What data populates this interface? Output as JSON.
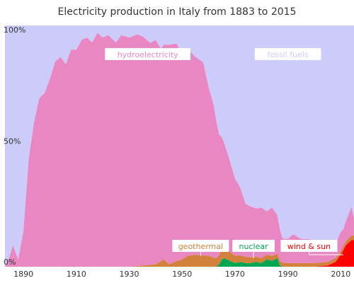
{
  "chart_data": {
    "type": "area",
    "stacked": true,
    "percent_stacked": true,
    "title": "Electricity production in Italy from 1883 to 2015",
    "xlim": [
      1883,
      2015
    ],
    "ylim": [
      0,
      100
    ],
    "x_ticks": [
      "1890",
      "1910",
      "1930",
      "1950",
      "1970",
      "1990",
      "2010"
    ],
    "y_ticks": [
      {
        "value": 0,
        "label": "0%"
      },
      {
        "value": 50,
        "label": "50%"
      },
      {
        "value": 100,
        "label": "100%"
      }
    ],
    "series": [
      {
        "name": "wind & sun",
        "color": "#ff0000",
        "points": [
          [
            1883,
            0
          ],
          [
            2000,
            0
          ],
          [
            2005,
            0.5
          ],
          [
            2008,
            2
          ],
          [
            2010,
            5
          ],
          [
            2012,
            9
          ],
          [
            2013,
            10
          ],
          [
            2014,
            11
          ],
          [
            2015,
            11
          ]
        ]
      },
      {
        "name": "nuclear",
        "color": "#00a651",
        "points": [
          [
            1883,
            0
          ],
          [
            1963,
            0
          ],
          [
            1964,
            1
          ],
          [
            1965,
            3
          ],
          [
            1966,
            3.5
          ],
          [
            1968,
            2.5
          ],
          [
            1970,
            1.5
          ],
          [
            1972,
            2
          ],
          [
            1974,
            1.5
          ],
          [
            1976,
            1.5
          ],
          [
            1978,
            2
          ],
          [
            1980,
            1.5
          ],
          [
            1982,
            3
          ],
          [
            1984,
            2.5
          ],
          [
            1986,
            3.5
          ],
          [
            1987,
            0.5
          ],
          [
            1988,
            0
          ],
          [
            2015,
            0
          ]
        ]
      },
      {
        "name": "geothermal",
        "color": "#d2823c",
        "points": [
          [
            1883,
            0
          ],
          [
            1930,
            0
          ],
          [
            1935,
            0.5
          ],
          [
            1940,
            1
          ],
          [
            1943,
            3
          ],
          [
            1945,
            1
          ],
          [
            1948,
            2.5
          ],
          [
            1950,
            3
          ],
          [
            1952,
            4.5
          ],
          [
            1955,
            5
          ],
          [
            1960,
            4.5
          ],
          [
            1963,
            3.5
          ],
          [
            1966,
            4.5
          ],
          [
            1970,
            3
          ],
          [
            1975,
            2.5
          ],
          [
            1980,
            2
          ],
          [
            1985,
            2
          ],
          [
            1990,
            1.5
          ],
          [
            1995,
            1.5
          ],
          [
            2000,
            1.5
          ],
          [
            2005,
            1.5
          ],
          [
            2010,
            1.5
          ],
          [
            2015,
            2
          ]
        ]
      },
      {
        "name": "hydroelectricity",
        "color": "#e887c1",
        "points": [
          [
            1883,
            0
          ],
          [
            1885,
            5
          ],
          [
            1886,
            9
          ],
          [
            1888,
            3
          ],
          [
            1890,
            15
          ],
          [
            1892,
            45
          ],
          [
            1894,
            60
          ],
          [
            1896,
            70
          ],
          [
            1898,
            72
          ],
          [
            1900,
            78
          ],
          [
            1902,
            85
          ],
          [
            1904,
            87
          ],
          [
            1906,
            84
          ],
          [
            1908,
            90
          ],
          [
            1910,
            90
          ],
          [
            1912,
            94
          ],
          [
            1914,
            95
          ],
          [
            1916,
            93
          ],
          [
            1918,
            97
          ],
          [
            1920,
            95
          ],
          [
            1922,
            96
          ],
          [
            1925,
            93
          ],
          [
            1927,
            96
          ],
          [
            1930,
            95
          ],
          [
            1933,
            96
          ],
          [
            1935,
            95
          ],
          [
            1938,
            92
          ],
          [
            1940,
            93
          ],
          [
            1942,
            88
          ],
          [
            1945,
            91
          ],
          [
            1948,
            90
          ],
          [
            1950,
            85
          ],
          [
            1952,
            86
          ],
          [
            1955,
            82
          ],
          [
            1958,
            80
          ],
          [
            1960,
            70
          ],
          [
            1962,
            63
          ],
          [
            1964,
            50
          ],
          [
            1966,
            43
          ],
          [
            1968,
            38
          ],
          [
            1970,
            32
          ],
          [
            1972,
            28
          ],
          [
            1974,
            22
          ],
          [
            1976,
            21
          ],
          [
            1978,
            20
          ],
          [
            1980,
            21
          ],
          [
            1982,
            18
          ],
          [
            1984,
            20
          ],
          [
            1986,
            16
          ],
          [
            1988,
            10
          ],
          [
            1990,
            10
          ],
          [
            1992,
            12
          ],
          [
            1995,
            10
          ],
          [
            1998,
            10
          ],
          [
            2000,
            9
          ],
          [
            2002,
            8
          ],
          [
            2005,
            4
          ],
          [
            2007,
            4
          ],
          [
            2009,
            7
          ],
          [
            2010,
            8
          ],
          [
            2011,
            7
          ],
          [
            2013,
            10
          ],
          [
            2014,
            12
          ],
          [
            2015,
            7
          ]
        ]
      },
      {
        "name": "fossil fuels",
        "color": "#cccbf9",
        "points": [
          [
            1883,
            100
          ],
          [
            2015,
            100
          ]
        ]
      }
    ],
    "annotations": [
      {
        "label": "hydroelectricity",
        "color": "#e887c1"
      },
      {
        "label": "fossil fuels",
        "color": "#cccbf9"
      },
      {
        "label": "geothermal",
        "color": "#d2823c"
      },
      {
        "label": "nuclear",
        "color": "#00a651"
      },
      {
        "label": "wind & sun",
        "color": "#ff0000"
      }
    ]
  }
}
